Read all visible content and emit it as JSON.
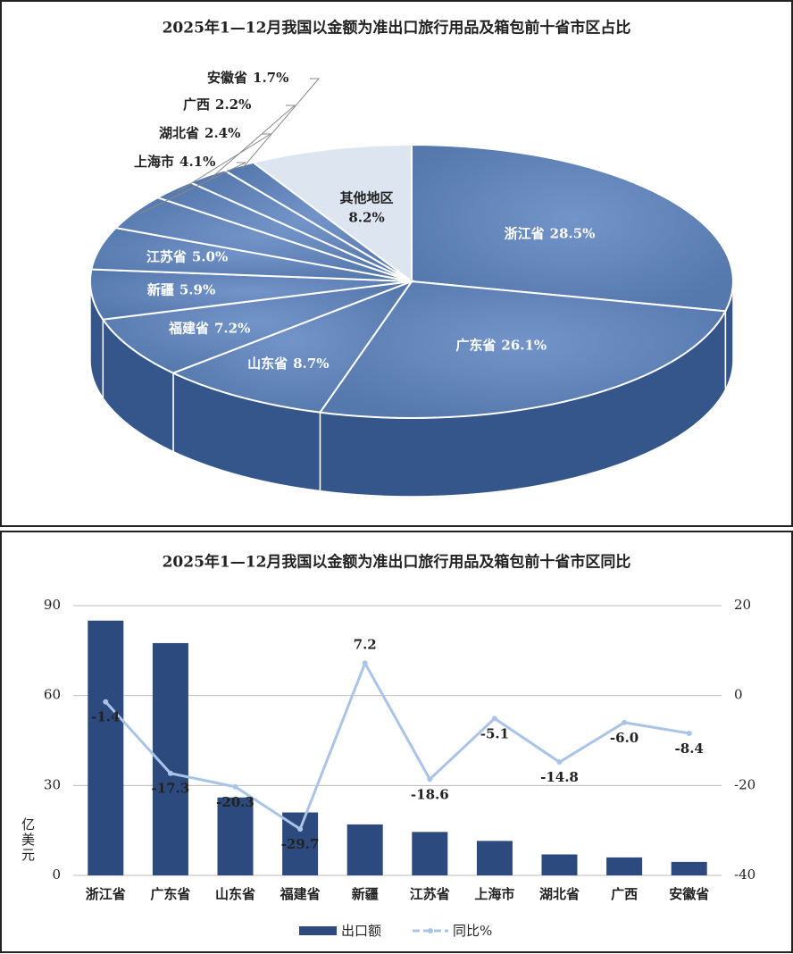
{
  "chart_data": [
    {
      "type": "pie",
      "title": "2025年1—12月我国以金额为准出口旅行用品及箱包前十省市区占比",
      "categories": [
        "浙江省",
        "广东省",
        "山东省",
        "福建省",
        "新疆",
        "江苏省",
        "上海市",
        "湖北省",
        "广西",
        "安徽省",
        "其他地区"
      ],
      "values": [
        28.5,
        26.1,
        8.7,
        7.2,
        5.9,
        5.0,
        4.1,
        2.4,
        2.2,
        1.7,
        8.2
      ],
      "value_labels": [
        "28.5%",
        "26.1%",
        "8.7%",
        "7.2%",
        "5.9%",
        "5.0%",
        "4.1%",
        "2.4%",
        "2.2%",
        "1.7%",
        "8.2%"
      ],
      "color": "#5578ad",
      "other_color": "#dde5f1"
    },
    {
      "type": "bar-line",
      "title": "2025年1—12月我国以金额为准出口旅行用品及箱包前十省市区同比",
      "y_label": "亿美元",
      "categories": [
        "浙江省",
        "广东省",
        "山东省",
        "福建省",
        "新疆",
        "江苏省",
        "上海市",
        "湖北省",
        "广西",
        "安徽省"
      ],
      "series": [
        {
          "name": "出口额",
          "color": "#2c4a7e",
          "values": [
            85,
            77.5,
            26,
            21,
            17,
            14.5,
            11.5,
            7,
            6,
            4.5
          ]
        },
        {
          "name": "同比%",
          "color": "#a9c4e6",
          "axis": "y2",
          "values": [
            -1.4,
            -17.3,
            -20.3,
            -29.7,
            7.2,
            -18.6,
            -5.1,
            -14.8,
            -6.0,
            -8.4
          ],
          "value_labels": [
            "-1.4",
            "-17.3",
            "-20.3",
            "-29.7",
            "7.2",
            "-18.6",
            "-5.1",
            "-14.8",
            "-6.0",
            "-8.4"
          ]
        }
      ],
      "ylim": [
        0,
        90
      ],
      "yticks": [
        0,
        30,
        60,
        90
      ],
      "y2lim": [
        -40,
        20
      ],
      "y2ticks": [
        -40,
        -20,
        0,
        20
      ],
      "grid": true
    }
  ]
}
